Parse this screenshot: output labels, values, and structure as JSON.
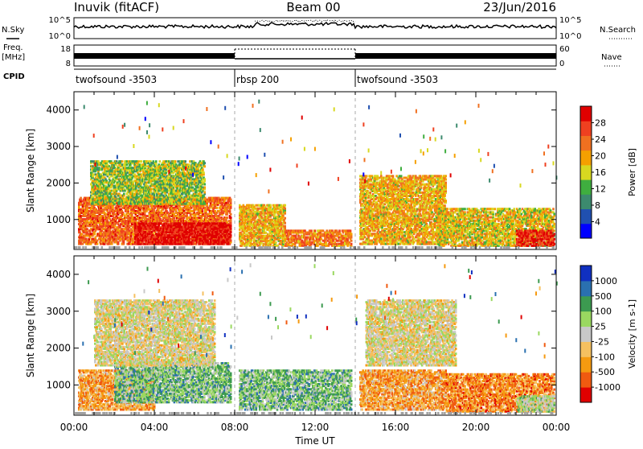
{
  "header": {
    "station": "Inuvik (fitACF)",
    "beam": "Beam 00",
    "date": "23/Jun/2016"
  },
  "strip_labels": {
    "nsky": "N.Sky",
    "nsearch": "N.Search",
    "freq": "Freq.",
    "freq_unit": "[MHz]",
    "nave": "Nave",
    "cpid": "CPID"
  },
  "strip_ticks": {
    "noise_top": "10^5",
    "noise_bottom": "10^0",
    "freq_top": "18",
    "freq_bottom": "8",
    "nave_top": "60",
    "nave_bottom": "0"
  },
  "cpid_segments": [
    {
      "label": "twofsound -3503",
      "start_hour": 0,
      "end_hour": 8
    },
    {
      "label": "rbsp 200",
      "start_hour": 8,
      "end_hour": 14
    },
    {
      "label": "twofsound -3503",
      "start_hour": 14,
      "end_hour": 24
    }
  ],
  "colors": {
    "power_scale": [
      "#0000ff",
      "#2050b0",
      "#3c8a6e",
      "#3fae3f",
      "#d8d820",
      "#f5a000",
      "#f07020",
      "#ef4020",
      "#e00000"
    ],
    "velocity_scale": [
      "#e00000",
      "#f05a10",
      "#f59a10",
      "#f5c060",
      "#c8c8c8",
      "#9ad860",
      "#3c9a50",
      "#2a70b0",
      "#1030c0"
    ],
    "trace": "#000000",
    "ground_scatter": "#a0a0a0"
  },
  "chart_data": [
    {
      "type": "heatmap",
      "panel": "power",
      "ylabel": "Slant Range [km]",
      "yticks": [
        1000,
        2000,
        3000,
        4000
      ],
      "ylim": [
        180,
        4500
      ],
      "xlim": [
        0,
        24
      ],
      "colorbar_label": "Power [dB]",
      "colorbar_ticks": [
        "4",
        "8",
        "12",
        "16",
        "20",
        "24",
        "28"
      ],
      "colorbar_range": [
        0,
        32
      ],
      "scatter_regions": [
        {
          "t0": 0.2,
          "t1": 7.8,
          "r0": 300,
          "r1": 1600,
          "level": 0.75
        },
        {
          "t0": 0.8,
          "t1": 6.5,
          "r0": 1400,
          "r1": 2600,
          "level": 0.45
        },
        {
          "t0": 3.0,
          "t1": 7.8,
          "r0": 300,
          "r1": 900,
          "level": 0.95
        },
        {
          "t0": 8.2,
          "t1": 10.5,
          "r0": 250,
          "r1": 1400,
          "level": 0.6
        },
        {
          "t0": 10.5,
          "t1": 13.8,
          "r0": 250,
          "r1": 700,
          "level": 0.7
        },
        {
          "t0": 14.2,
          "t1": 18.5,
          "r0": 300,
          "r1": 2200,
          "level": 0.6
        },
        {
          "t0": 18.0,
          "t1": 23.9,
          "r0": 250,
          "r1": 1300,
          "level": 0.55
        },
        {
          "t0": 22.0,
          "t1": 23.9,
          "r0": 250,
          "r1": 700,
          "level": 0.9
        }
      ]
    },
    {
      "type": "heatmap",
      "panel": "velocity",
      "ylabel": "Slant Range [km]",
      "xlabel": "Time UT",
      "xticks": [
        "00:00",
        "04:00",
        "08:00",
        "12:00",
        "16:00",
        "20:00",
        "00:00"
      ],
      "yticks": [
        1000,
        2000,
        3000,
        4000
      ],
      "ylim": [
        180,
        4500
      ],
      "xlim": [
        0,
        24
      ],
      "colorbar_label": "Velocity [m s-1]",
      "colorbar_ticks": [
        "-1000",
        "-500",
        "-100",
        "-25",
        "25",
        "100",
        "500",
        "1000"
      ],
      "scatter_regions": [
        {
          "t0": 0.2,
          "t1": 4.0,
          "r0": 300,
          "r1": 1400,
          "level": 0.3
        },
        {
          "t0": 2.0,
          "t1": 7.8,
          "r0": 500,
          "r1": 1600,
          "level": 0.65
        },
        {
          "t0": 1.0,
          "t1": 7.0,
          "r0": 1500,
          "r1": 3300,
          "level": 0.47
        },
        {
          "t0": 8.2,
          "t1": 13.8,
          "r0": 300,
          "r1": 1400,
          "level": 0.65
        },
        {
          "t0": 14.2,
          "t1": 18.5,
          "r0": 300,
          "r1": 1400,
          "level": 0.3
        },
        {
          "t0": 14.5,
          "t1": 19.0,
          "r0": 1500,
          "r1": 3300,
          "level": 0.47
        },
        {
          "t0": 18.5,
          "t1": 23.9,
          "r0": 250,
          "r1": 1300,
          "level": 0.25
        },
        {
          "t0": 22.0,
          "t1": 23.9,
          "r0": 250,
          "r1": 700,
          "level": 0.55
        }
      ]
    }
  ]
}
